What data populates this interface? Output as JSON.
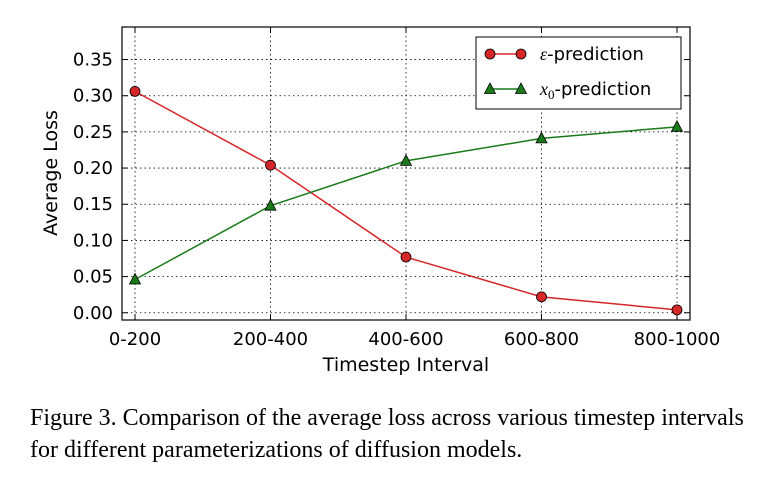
{
  "chart_data": {
    "type": "line",
    "categories": [
      "0-200",
      "200-400",
      "400-600",
      "600-800",
      "800-1000"
    ],
    "series": [
      {
        "name": "ε-prediction",
        "symbol": "ε",
        "suffix": "-prediction",
        "color": "#d62728",
        "marker": "circle",
        "values": [
          0.306,
          0.204,
          0.077,
          0.022,
          0.004
        ]
      },
      {
        "name": "x0-prediction",
        "symbol": "x",
        "subscript": "0",
        "suffix": "-prediction",
        "color": "#1a7a1a",
        "marker": "triangle",
        "values": [
          0.046,
          0.148,
          0.21,
          0.241,
          0.257
        ]
      }
    ],
    "xlabel": "Timestep Interval",
    "ylabel": "Average Loss",
    "ylim": [
      -0.01,
      0.395
    ],
    "yticks": [
      0.0,
      0.05,
      0.1,
      0.15,
      0.2,
      0.25,
      0.3,
      0.35
    ],
    "ytick_labels": [
      "0.00",
      "0.05",
      "0.10",
      "0.15",
      "0.20",
      "0.25",
      "0.30",
      "0.35"
    ],
    "grid": true,
    "legend_position": "top-right"
  },
  "caption": "Figure 3. Comparison of the average loss across various timestep intervals for different parameterizations of diffusion models."
}
